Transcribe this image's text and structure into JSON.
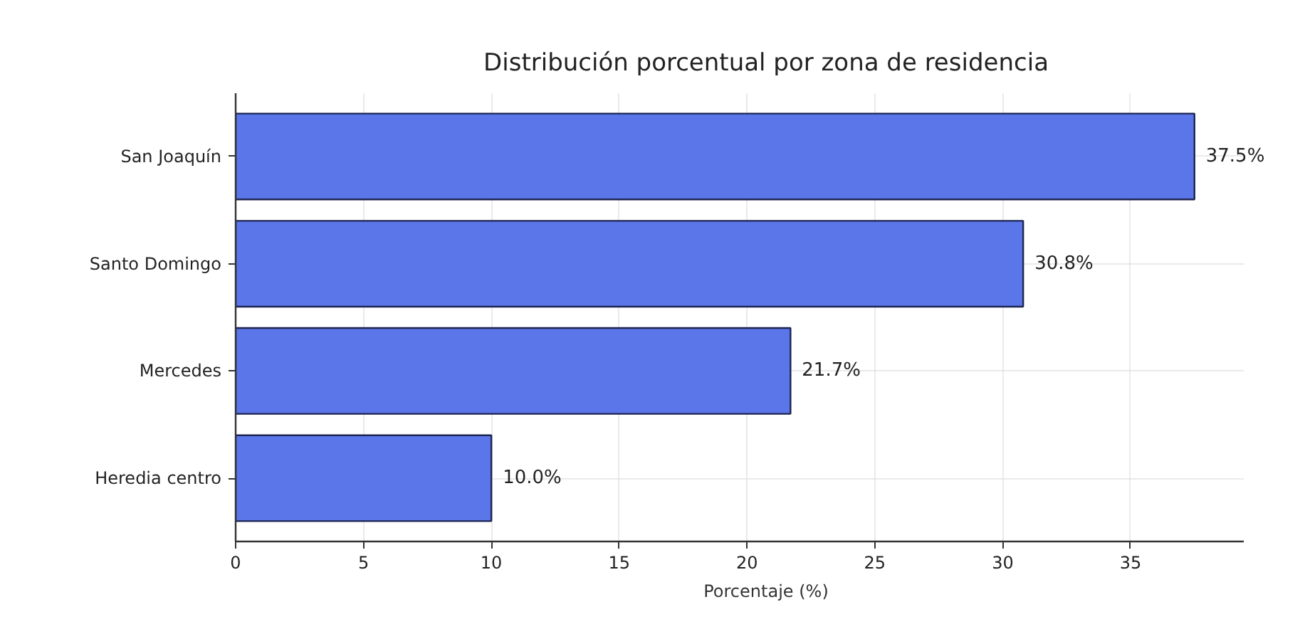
{
  "chart_data": {
    "type": "bar",
    "orientation": "horizontal",
    "title": "Distribución porcentual por zona de residencia",
    "xlabel": "Porcentaje (%)",
    "categories": [
      "San Joaquín",
      "Santo Domingo",
      "Mercedes",
      "Heredia centro"
    ],
    "values": [
      37.5,
      30.8,
      21.7,
      10.0
    ],
    "value_labels": [
      "37.5%",
      "30.8%",
      "21.7%",
      "10.0%"
    ],
    "color": "#5b76e8",
    "xlim": [
      0,
      39.4
    ],
    "xticks": [
      0,
      5,
      10,
      15,
      20,
      25,
      30,
      35
    ],
    "grid": true
  }
}
